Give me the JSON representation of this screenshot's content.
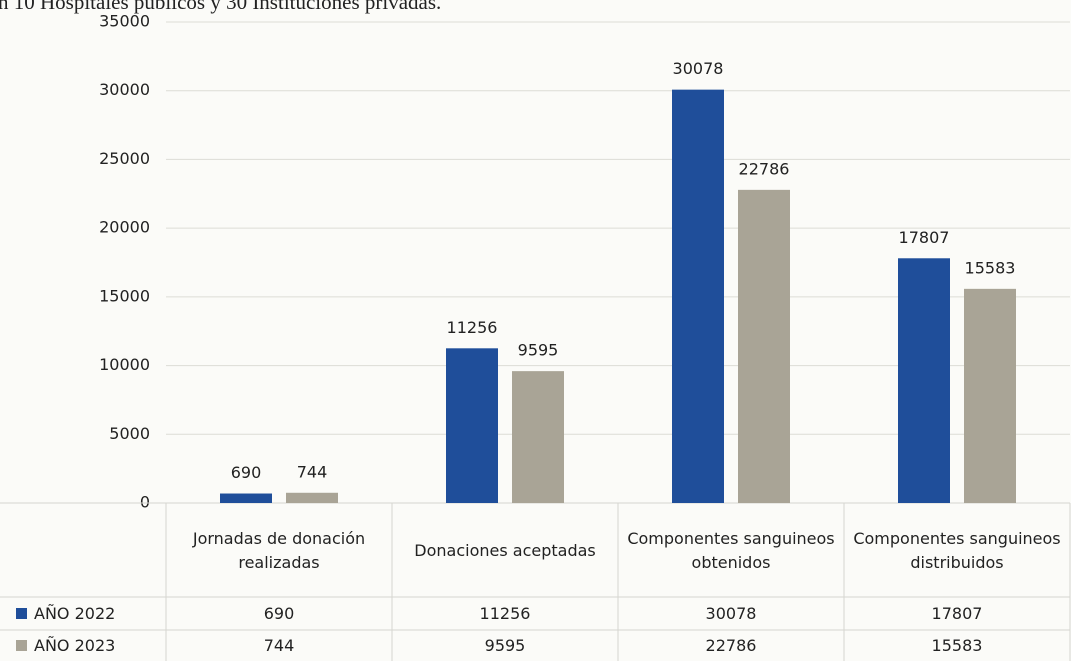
{
  "chart_data": {
    "type": "bar",
    "subtitle": "n 10 Hospitales públicos y 30 Instituciones privadas.",
    "categories": [
      "Jornadas de donación realizadas",
      "Donaciones aceptadas",
      "Componentes sanguineos obtenidos",
      "Componentes sanguineos distribuidos"
    ],
    "series": [
      {
        "name": "AÑO 2022",
        "color": "#1f4e9a",
        "values": [
          690,
          11256,
          30078,
          17807
        ]
      },
      {
        "name": "AÑO 2023",
        "color": "#a9a496",
        "values": [
          744,
          9595,
          22786,
          15583
        ]
      }
    ],
    "ylim": [
      0,
      35000
    ],
    "yticks": [
      0,
      5000,
      10000,
      15000,
      20000,
      25000,
      30000,
      35000
    ],
    "grid": true,
    "data_table": true
  }
}
